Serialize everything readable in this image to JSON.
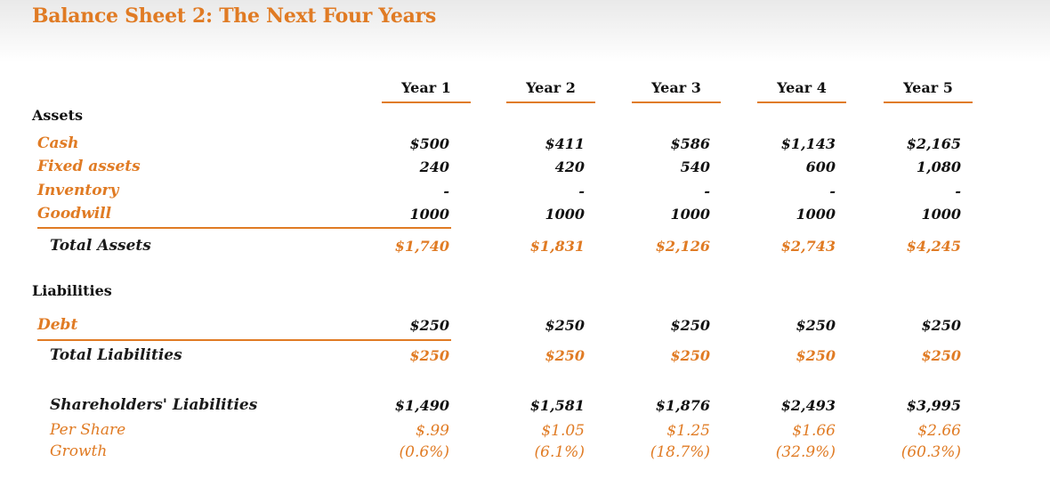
{
  "title": "Balance Sheet 2: The Next Four Years",
  "years": [
    "Year 1",
    "Year 2",
    "Year 3",
    "Year 4",
    "Year 5"
  ],
  "sections": {
    "assets": "Assets",
    "liabilities": "Liabilities"
  },
  "rows": {
    "cash": {
      "label": "Cash",
      "values": [
        "$500",
        "$411",
        "$586",
        "$1,143",
        "$2,165"
      ]
    },
    "fixed_assets": {
      "label": "Fixed assets",
      "values": [
        "240",
        "420",
        "540",
        "600",
        "1,080"
      ]
    },
    "inventory": {
      "label": "Inventory",
      "values": [
        "-",
        "-",
        "-",
        "-",
        "-"
      ]
    },
    "goodwill": {
      "label": "Goodwill",
      "values": [
        "1000",
        "1000",
        "1000",
        "1000",
        "1000"
      ]
    },
    "total_assets": {
      "label": "Total Assets",
      "values": [
        "$1,740",
        "$1,831",
        "$2,126",
        "$2,743",
        "$4,245"
      ]
    },
    "debt": {
      "label": "Debt",
      "values": [
        "$250",
        "$250",
        "$250",
        "$250",
        "$250"
      ]
    },
    "total_liabilities": {
      "label": "Total Liabilities",
      "values": [
        "$250",
        "$250",
        "$250",
        "$250",
        "$250"
      ]
    },
    "shareholders": {
      "label": "Shareholders' Liabilities",
      "values": [
        "$1,490",
        "$1,581",
        "$1,876",
        "$2,493",
        "$3,995"
      ]
    },
    "per_share": {
      "label": "Per Share",
      "values": [
        "$.99",
        "$1.05",
        "$1.25",
        "$1.66",
        "$2.66"
      ]
    },
    "growth": {
      "label": "Growth",
      "values": [
        "(0.6%)",
        "(6.1%)",
        "(18.7%)",
        "(32.9%)",
        "(60.3%)"
      ]
    }
  },
  "colors": {
    "accent": "#e07b24",
    "text": "#111111"
  }
}
